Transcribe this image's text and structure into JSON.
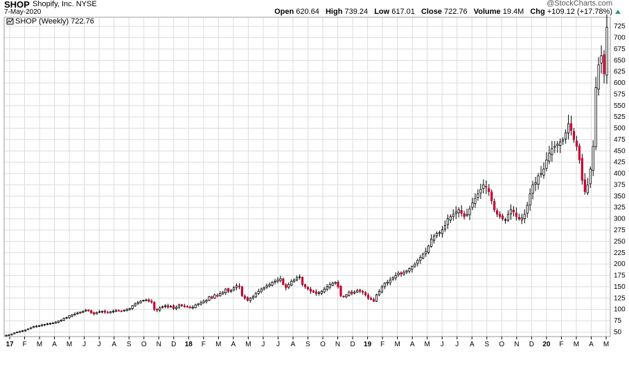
{
  "header": {
    "symbol": "SHOP",
    "company": "Shopify, Inc. NYSE",
    "date": "7-May-2020",
    "credit": "@StockCharts.com",
    "open_label": "Open",
    "open": "620.64",
    "high_label": "High",
    "high": "739.24",
    "low_label": "Low",
    "low": "617.01",
    "close_label": "Close",
    "close": "722.76",
    "volume_label": "Volume",
    "volume": "19.4M",
    "chg_label": "Chg",
    "chg": "+109.12 (+17.78%)",
    "up_color": "#2c9c63"
  },
  "legend": {
    "text": "SHOP (Weekly) 722.76"
  },
  "colors": {
    "down": "#cc0033",
    "up_fill": "#ffffff",
    "outline": "#000000",
    "grid": "#dcdcdc"
  },
  "chart_data": {
    "type": "candlestick",
    "ylim": [
      40,
      745
    ],
    "yticks": [
      50,
      75,
      100,
      125,
      150,
      175,
      200,
      225,
      250,
      275,
      300,
      325,
      350,
      375,
      400,
      425,
      450,
      475,
      500,
      525,
      550,
      575,
      600,
      625,
      650,
      675,
      700,
      725
    ],
    "xticks": [
      {
        "label": "17",
        "bold": true,
        "t": 0
      },
      {
        "label": "F",
        "t": 1
      },
      {
        "label": "M",
        "t": 2
      },
      {
        "label": "A",
        "t": 3
      },
      {
        "label": "M",
        "t": 4
      },
      {
        "label": "J",
        "t": 5
      },
      {
        "label": "J",
        "t": 6
      },
      {
        "label": "A",
        "t": 7
      },
      {
        "label": "S",
        "t": 8
      },
      {
        "label": "O",
        "t": 9
      },
      {
        "label": "N",
        "t": 10
      },
      {
        "label": "D",
        "t": 11
      },
      {
        "label": "18",
        "bold": true,
        "t": 12
      },
      {
        "label": "F",
        "t": 13
      },
      {
        "label": "M",
        "t": 14
      },
      {
        "label": "A",
        "t": 15
      },
      {
        "label": "M",
        "t": 16
      },
      {
        "label": "J",
        "t": 17
      },
      {
        "label": "J",
        "t": 18
      },
      {
        "label": "A",
        "t": 19
      },
      {
        "label": "S",
        "t": 20
      },
      {
        "label": "O",
        "t": 21
      },
      {
        "label": "N",
        "t": 22
      },
      {
        "label": "D",
        "t": 23
      },
      {
        "label": "19",
        "bold": true,
        "t": 24
      },
      {
        "label": "F",
        "t": 25
      },
      {
        "label": "M",
        "t": 26
      },
      {
        "label": "A",
        "t": 27
      },
      {
        "label": "M",
        "t": 28
      },
      {
        "label": "J",
        "t": 29
      },
      {
        "label": "J",
        "t": 30
      },
      {
        "label": "A",
        "t": 31
      },
      {
        "label": "S",
        "t": 32
      },
      {
        "label": "O",
        "t": 33
      },
      {
        "label": "N",
        "t": 34
      },
      {
        "label": "D",
        "t": 35
      },
      {
        "label": "20",
        "bold": true,
        "t": 36
      },
      {
        "label": "F",
        "t": 37
      },
      {
        "label": "M",
        "t": 38
      },
      {
        "label": "A",
        "t": 39
      },
      {
        "label": "M",
        "t": 40
      }
    ],
    "closes": [
      43,
      44,
      46,
      48,
      50,
      52,
      53,
      55,
      57,
      60,
      62,
      63,
      64,
      66,
      67,
      68,
      69,
      70,
      72,
      74,
      76,
      80,
      82,
      86,
      88,
      90,
      92,
      94,
      96,
      98,
      97,
      92,
      90,
      93,
      95,
      96,
      94,
      93,
      95,
      96,
      98,
      97,
      96,
      98,
      100,
      102,
      108,
      112,
      115,
      118,
      120,
      121,
      118,
      116,
      100,
      98,
      104,
      106,
      108,
      105,
      107,
      102,
      105,
      110,
      108,
      107,
      106,
      104,
      105,
      110,
      112,
      115,
      118,
      120,
      128,
      125,
      132,
      130,
      135,
      138,
      145,
      140,
      142,
      148,
      152,
      150,
      130,
      125,
      120,
      125,
      128,
      135,
      140,
      145,
      148,
      152,
      155,
      160,
      162,
      165,
      168,
      155,
      148,
      155,
      162,
      165,
      170,
      172,
      155,
      150,
      145,
      140,
      138,
      135,
      137,
      140,
      145,
      150,
      155,
      158,
      160,
      150,
      130,
      128,
      132,
      138,
      135,
      138,
      142,
      140,
      138,
      132,
      125,
      122,
      118,
      132,
      140,
      150,
      158,
      160,
      165,
      170,
      175,
      180,
      178,
      182,
      185,
      190,
      195,
      200,
      208,
      215,
      222,
      228,
      240,
      255,
      262,
      268,
      270,
      276,
      285,
      300,
      305,
      310,
      315,
      320,
      312,
      305,
      310,
      322,
      335,
      345,
      355,
      365,
      375,
      370,
      360,
      340,
      320,
      310,
      305,
      300,
      298,
      310,
      320,
      315,
      305,
      300,
      302,
      310,
      330,
      355,
      375,
      380,
      395,
      400,
      410,
      430,
      445,
      455,
      460,
      465,
      470,
      475,
      490,
      510,
      495,
      475,
      460,
      430,
      385,
      360,
      375,
      410,
      460,
      590,
      640,
      660,
      620,
      722.76
    ]
  }
}
